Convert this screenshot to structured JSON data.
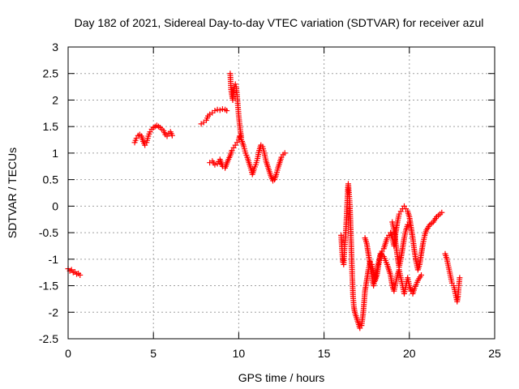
{
  "chart_data": {
    "type": "scatter",
    "title": "Day 182 of 2021, Sidereal Day-to-day VTEC variation (SDTVAR) for receiver azul",
    "xlabel": "GPS time / hours",
    "ylabel": "SDTVAR / TECUs",
    "xlim": [
      0,
      25
    ],
    "ylim": [
      -2.5,
      3
    ],
    "xticks": [
      0,
      5,
      10,
      15,
      20,
      25
    ],
    "xtick_labels": [
      "0",
      "5",
      "10",
      "15",
      "20",
      "25"
    ],
    "yticks": [
      -2.5,
      -2,
      -1.5,
      -1,
      -0.5,
      0,
      0.5,
      1,
      1.5,
      2,
      2.5,
      3
    ],
    "ytick_labels": [
      "-2.5",
      "-2",
      "-1.5",
      "-1",
      "-0.5",
      "0",
      "0.5",
      "1",
      "1.5",
      "2",
      "2.5",
      "3"
    ],
    "grid": true,
    "marker": "+",
    "color": "#ff0000",
    "series": [
      {
        "name": "SDTVAR",
        "segments": [
          [
            [
              0.0,
              -1.18
            ],
            [
              0.1,
              -1.22
            ],
            [
              0.2,
              -1.2
            ],
            [
              0.3,
              -1.25
            ],
            [
              0.4,
              -1.24
            ],
            [
              0.5,
              -1.28
            ],
            [
              0.6,
              -1.27
            ],
            [
              0.7,
              -1.3
            ]
          ],
          [
            [
              3.9,
              1.2
            ],
            [
              4.0,
              1.28
            ],
            [
              4.1,
              1.33
            ],
            [
              4.2,
              1.35
            ],
            [
              4.3,
              1.32
            ],
            [
              4.4,
              1.22
            ],
            [
              4.5,
              1.15
            ],
            [
              4.6,
              1.2
            ],
            [
              4.7,
              1.32
            ],
            [
              4.8,
              1.4
            ],
            [
              4.9,
              1.45
            ],
            [
              5.0,
              1.48
            ],
            [
              5.1,
              1.5
            ],
            [
              5.2,
              1.52
            ],
            [
              5.3,
              1.5
            ],
            [
              5.4,
              1.48
            ],
            [
              5.5,
              1.45
            ],
            [
              5.6,
              1.42
            ],
            [
              5.7,
              1.35
            ],
            [
              5.8,
              1.32
            ],
            [
              5.9,
              1.37
            ],
            [
              6.0,
              1.4
            ],
            [
              6.1,
              1.33
            ]
          ],
          [
            [
              7.8,
              1.55
            ],
            [
              7.95,
              1.58
            ],
            [
              8.1,
              1.62
            ],
            [
              8.2,
              1.7
            ],
            [
              8.3,
              1.73
            ],
            [
              8.45,
              1.76
            ],
            [
              8.6,
              1.8
            ],
            [
              8.75,
              1.82
            ],
            [
              8.9,
              1.81
            ],
            [
              9.05,
              1.83
            ],
            [
              9.2,
              1.82
            ],
            [
              9.3,
              1.8
            ]
          ],
          [
            [
              8.3,
              0.82
            ],
            [
              8.45,
              0.85
            ],
            [
              8.6,
              0.78
            ],
            [
              8.75,
              0.8
            ],
            [
              8.9,
              0.88
            ],
            [
              9.05,
              0.75
            ],
            [
              9.2,
              0.72
            ],
            [
              9.35,
              0.85
            ],
            [
              9.5,
              0.95
            ],
            [
              9.6,
              1.05
            ],
            [
              9.7,
              1.1
            ],
            [
              9.8,
              1.15
            ],
            [
              9.9,
              1.2
            ],
            [
              10.0,
              1.25
            ],
            [
              10.05,
              1.32
            ],
            [
              10.1,
              1.3
            ],
            [
              10.2,
              1.22
            ],
            [
              10.3,
              1.12
            ],
            [
              10.4,
              1.0
            ],
            [
              10.5,
              0.92
            ],
            [
              10.6,
              0.82
            ],
            [
              10.7,
              0.72
            ],
            [
              10.8,
              0.6
            ],
            [
              10.9,
              0.7
            ],
            [
              11.0,
              0.78
            ],
            [
              11.1,
              0.9
            ],
            [
              11.2,
              1.05
            ],
            [
              11.3,
              1.15
            ],
            [
              11.4,
              1.12
            ],
            [
              11.5,
              1.0
            ],
            [
              11.6,
              0.85
            ],
            [
              11.7,
              0.75
            ],
            [
              11.8,
              0.65
            ],
            [
              11.9,
              0.55
            ],
            [
              12.0,
              0.48
            ],
            [
              12.1,
              0.5
            ],
            [
              12.2,
              0.6
            ],
            [
              12.3,
              0.72
            ],
            [
              12.4,
              0.82
            ],
            [
              12.5,
              0.92
            ],
            [
              12.6,
              0.97
            ],
            [
              12.7,
              1.0
            ]
          ],
          [
            [
              9.5,
              2.5
            ],
            [
              9.55,
              2.2
            ],
            [
              9.6,
              2.1
            ],
            [
              9.65,
              2.0
            ],
            [
              9.7,
              2.15
            ],
            [
              9.75,
              2.25
            ],
            [
              9.8,
              2.3
            ],
            [
              9.85,
              2.25
            ],
            [
              9.9,
              2.1
            ],
            [
              9.95,
              1.9
            ],
            [
              10.0,
              1.7
            ],
            [
              10.05,
              1.55
            ],
            [
              10.1,
              1.4
            ],
            [
              10.15,
              1.3
            ]
          ],
          [
            [
              16.0,
              -0.55
            ],
            [
              16.05,
              -0.8
            ],
            [
              16.1,
              -1.05
            ],
            [
              16.15,
              -1.1
            ],
            [
              16.2,
              -0.8
            ],
            [
              16.25,
              -0.6
            ],
            [
              16.3,
              -0.35
            ],
            [
              16.35,
              0.0
            ],
            [
              16.4,
              0.35
            ],
            [
              16.42,
              0.42
            ],
            [
              16.45,
              0.3
            ],
            [
              16.5,
              0.1
            ],
            [
              16.55,
              -0.3
            ],
            [
              16.6,
              -0.8
            ],
            [
              16.65,
              -1.3
            ],
            [
              16.7,
              -1.7
            ],
            [
              16.75,
              -1.9
            ],
            [
              16.8,
              -2.0
            ],
            [
              16.9,
              -2.1
            ],
            [
              17.0,
              -2.2
            ],
            [
              17.1,
              -2.3
            ],
            [
              17.2,
              -2.25
            ],
            [
              17.3,
              -2.0
            ],
            [
              17.4,
              -1.6
            ],
            [
              17.5,
              -1.4
            ],
            [
              17.6,
              -1.2
            ],
            [
              17.7,
              -1.05
            ],
            [
              17.8,
              -1.1
            ],
            [
              17.9,
              -1.25
            ],
            [
              18.0,
              -1.4
            ],
            [
              18.1,
              -1.3
            ],
            [
              18.2,
              -1.1
            ],
            [
              18.3,
              -0.95
            ],
            [
              18.4,
              -0.85
            ],
            [
              18.5,
              -0.8
            ],
            [
              18.6,
              -0.7
            ],
            [
              18.7,
              -0.6
            ],
            [
              18.8,
              -0.55
            ],
            [
              18.9,
              -0.5
            ],
            [
              19.0,
              -0.6
            ],
            [
              19.1,
              -0.75
            ],
            [
              19.2,
              -0.5
            ],
            [
              19.3,
              -0.3
            ],
            [
              19.4,
              -0.15
            ],
            [
              19.5,
              -0.1
            ],
            [
              19.6,
              -0.05
            ],
            [
              19.7,
              0.0
            ],
            [
              19.8,
              -0.05
            ],
            [
              19.9,
              -0.1
            ],
            [
              20.0,
              -0.2
            ],
            [
              20.1,
              -0.4
            ],
            [
              20.2,
              -0.6
            ],
            [
              20.3,
              -0.85
            ],
            [
              20.4,
              -1.05
            ],
            [
              20.5,
              -1.2
            ],
            [
              20.6,
              -1.1
            ],
            [
              20.7,
              -0.9
            ],
            [
              20.8,
              -0.7
            ],
            [
              20.9,
              -0.55
            ],
            [
              21.0,
              -0.45
            ],
            [
              21.2,
              -0.35
            ],
            [
              21.4,
              -0.3
            ],
            [
              21.6,
              -0.2
            ],
            [
              21.8,
              -0.15
            ],
            [
              21.9,
              -0.12
            ]
          ],
          [
            [
              17.4,
              -0.6
            ],
            [
              17.5,
              -0.7
            ],
            [
              17.6,
              -0.9
            ],
            [
              17.7,
              -1.1
            ],
            [
              17.8,
              -1.3
            ],
            [
              17.9,
              -1.5
            ],
            [
              18.0,
              -1.35
            ],
            [
              18.1,
              -1.2
            ],
            [
              18.2,
              -1.05
            ],
            [
              18.3,
              -0.9
            ],
            [
              18.5,
              -0.95
            ],
            [
              18.7,
              -1.1
            ],
            [
              18.9,
              -1.3
            ],
            [
              19.0,
              -1.5
            ],
            [
              19.1,
              -1.6
            ],
            [
              19.2,
              -1.45
            ],
            [
              19.3,
              -1.3
            ],
            [
              19.4,
              -1.2
            ],
            [
              19.5,
              -1.35
            ],
            [
              19.6,
              -1.5
            ],
            [
              19.7,
              -1.65
            ],
            [
              19.8,
              -1.5
            ],
            [
              19.9,
              -1.35
            ],
            [
              20.0,
              -1.5
            ],
            [
              20.1,
              -1.6
            ],
            [
              20.2,
              -1.65
            ],
            [
              20.3,
              -1.55
            ],
            [
              20.5,
              -1.4
            ],
            [
              20.7,
              -1.3
            ]
          ],
          [
            [
              19.0,
              -0.3
            ],
            [
              19.1,
              -0.45
            ],
            [
              19.2,
              -0.7
            ],
            [
              19.3,
              -0.95
            ],
            [
              19.4,
              -1.15
            ],
            [
              19.5,
              -1.0
            ],
            [
              19.6,
              -0.8
            ],
            [
              19.7,
              -0.6
            ],
            [
              19.8,
              -0.45
            ],
            [
              19.9,
              -0.35
            ],
            [
              20.0,
              -0.3
            ]
          ],
          [
            [
              22.1,
              -0.9
            ],
            [
              22.2,
              -1.0
            ],
            [
              22.3,
              -1.15
            ],
            [
              22.4,
              -1.3
            ],
            [
              22.5,
              -1.45
            ],
            [
              22.6,
              -1.5
            ],
            [
              22.7,
              -1.65
            ],
            [
              22.8,
              -1.8
            ],
            [
              22.85,
              -1.7
            ],
            [
              22.9,
              -1.5
            ],
            [
              22.95,
              -1.35
            ]
          ]
        ]
      }
    ]
  }
}
